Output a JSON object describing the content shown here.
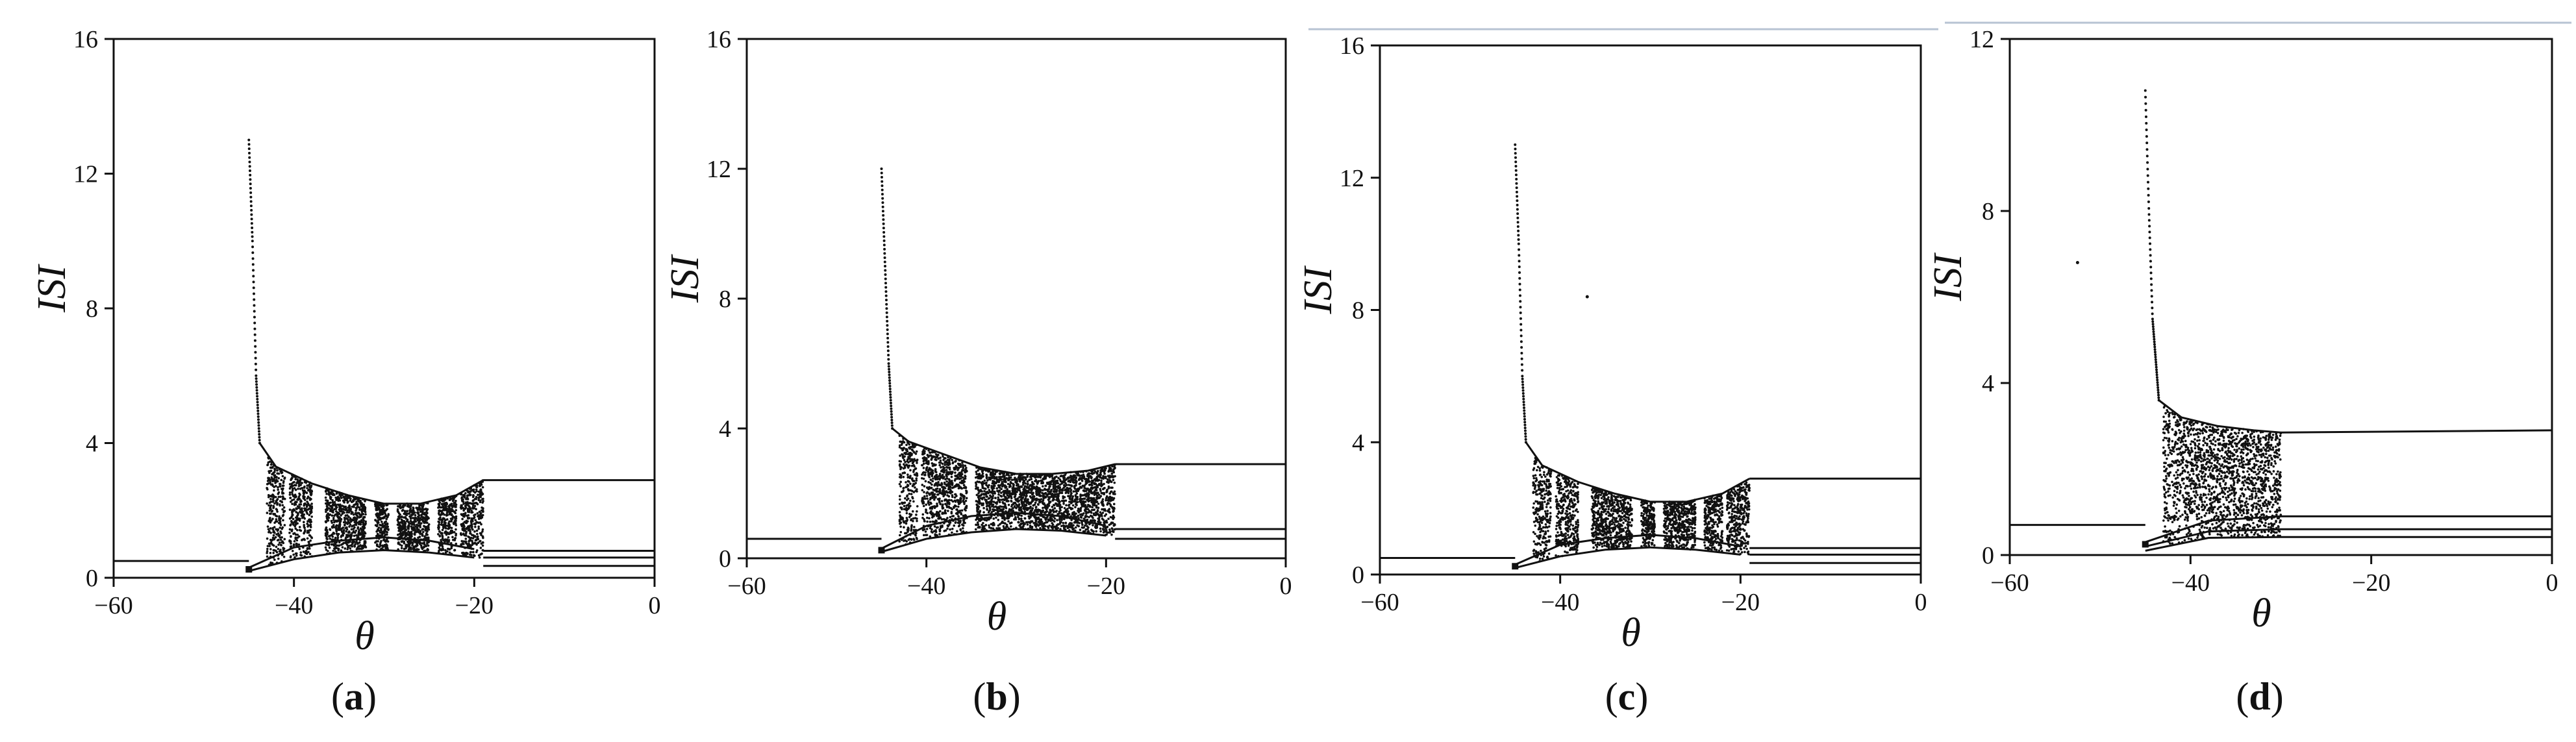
{
  "figure": {
    "captions": [
      {
        "open": "(",
        "letter": "a",
        "close": ")"
      },
      {
        "open": "(",
        "letter": "b",
        "close": ")"
      },
      {
        "open": "(",
        "letter": "c",
        "close": ")"
      },
      {
        "open": "(",
        "letter": "d",
        "close": ")"
      }
    ]
  },
  "chart_data": [
    {
      "type": "scatter",
      "panel": "a",
      "xlabel": "θ",
      "ylabel": "ISI",
      "xlim": [
        -60,
        0
      ],
      "ylim": [
        0,
        16
      ],
      "xticks": [
        -60,
        -40,
        -20,
        0
      ],
      "yticks": [
        0,
        4,
        8,
        12,
        16
      ],
      "tick_labels_x": [
        "−60",
        "−40",
        "−20",
        "0"
      ],
      "tick_labels_y": [
        "0",
        "4",
        "8",
        "12",
        "16"
      ],
      "grid": false,
      "onset_theta": -45,
      "chaos_end_theta": -19,
      "lines": [
        {
          "name": "low-branch-left",
          "points": [
            [
              -60,
              0.5
            ],
            [
              -45,
              0.5
            ]
          ]
        },
        {
          "name": "upper-envelope",
          "points": [
            [
              -45,
              13
            ],
            [
              -44.6,
              10
            ],
            [
              -44.2,
              6
            ],
            [
              -43.8,
              4
            ],
            [
              -42,
              3.3
            ],
            [
              -38,
              2.8
            ],
            [
              -34,
              2.45
            ],
            [
              -30,
              2.2
            ],
            [
              -26,
              2.2
            ],
            [
              -22,
              2.45
            ],
            [
              -19,
              2.9
            ]
          ]
        },
        {
          "name": "high-branch-right",
          "points": [
            [
              -19,
              2.9
            ],
            [
              0,
              2.9
            ]
          ]
        },
        {
          "name": "mid-branch-right",
          "points": [
            [
              -19,
              0.8
            ],
            [
              0,
              0.8
            ]
          ]
        },
        {
          "name": "low-branch-right",
          "points": [
            [
              -19,
              0.6
            ],
            [
              0,
              0.6
            ]
          ]
        },
        {
          "name": "lowest-branch-right",
          "points": [
            [
              -19,
              0.35
            ],
            [
              0,
              0.35
            ]
          ]
        },
        {
          "name": "inner-arc-1",
          "points": [
            [
              -45,
              0.2
            ],
            [
              -40,
              0.55
            ],
            [
              -35,
              0.75
            ],
            [
              -30,
              0.82
            ],
            [
              -25,
              0.75
            ],
            [
              -20,
              0.6
            ]
          ]
        },
        {
          "name": "inner-arc-2",
          "points": [
            [
              -45,
              0.3
            ],
            [
              -40,
              0.9
            ],
            [
              -35,
              1.1
            ],
            [
              -30,
              1.2
            ],
            [
              -25,
              1.1
            ],
            [
              -20,
              0.85
            ]
          ]
        }
      ],
      "chaotic_bands": [
        [
          -43,
          -41
        ],
        [
          -40.5,
          -38
        ],
        [
          -36.5,
          -32
        ],
        [
          -31,
          -29.5
        ],
        [
          -28.5,
          -25
        ],
        [
          -24,
          -22
        ],
        [
          -21.5,
          -19
        ]
      ]
    },
    {
      "type": "scatter",
      "panel": "b",
      "xlabel": "θ",
      "ylabel": "ISI",
      "xlim": [
        -60,
        0
      ],
      "ylim": [
        0,
        16
      ],
      "xticks": [
        -60,
        -40,
        -20,
        0
      ],
      "yticks": [
        0,
        4,
        8,
        12,
        16
      ],
      "tick_labels_x": [
        "−60",
        "−40",
        "−20",
        "0"
      ],
      "tick_labels_y": [
        "0",
        "4",
        "8",
        "12",
        "16"
      ],
      "grid": false,
      "onset_theta": -45,
      "chaos_end_theta": -19,
      "lines": [
        {
          "name": "low-branch-left",
          "points": [
            [
              -60,
              0.6
            ],
            [
              -45,
              0.6
            ]
          ]
        },
        {
          "name": "upper-envelope",
          "points": [
            [
              -45,
              12
            ],
            [
              -44.6,
              9
            ],
            [
              -44.2,
              6
            ],
            [
              -43.8,
              4
            ],
            [
              -42,
              3.6
            ],
            [
              -38,
              3.2
            ],
            [
              -34,
              2.8
            ],
            [
              -30,
              2.6
            ],
            [
              -26,
              2.6
            ],
            [
              -22,
              2.7
            ],
            [
              -19,
              2.9
            ]
          ]
        },
        {
          "name": "high-branch-right",
          "points": [
            [
              -19,
              2.9
            ],
            [
              0,
              2.9
            ]
          ]
        },
        {
          "name": "mid-branch-right",
          "points": [
            [
              -19,
              0.9
            ],
            [
              0,
              0.9
            ]
          ]
        },
        {
          "name": "low-branch-right",
          "points": [
            [
              -19,
              0.6
            ],
            [
              0,
              0.6
            ]
          ]
        },
        {
          "name": "inner-arc-1",
          "points": [
            [
              -45,
              0.2
            ],
            [
              -40,
              0.6
            ],
            [
              -35,
              0.8
            ],
            [
              -30,
              0.9
            ],
            [
              -25,
              0.85
            ],
            [
              -20,
              0.7
            ]
          ]
        },
        {
          "name": "inner-arc-2",
          "points": [
            [
              -45,
              0.3
            ],
            [
              -40,
              1.0
            ],
            [
              -35,
              1.3
            ],
            [
              -30,
              1.4
            ],
            [
              -25,
              1.3
            ],
            [
              -20,
              1.0
            ]
          ]
        }
      ],
      "chaotic_bands": [
        [
          -43,
          -41
        ],
        [
          -40.5,
          -35.5
        ],
        [
          -34.5,
          -19
        ]
      ]
    },
    {
      "type": "scatter",
      "panel": "c",
      "xlabel": "θ",
      "ylabel": "ISI",
      "xlim": [
        -60,
        0
      ],
      "ylim": [
        0,
        16
      ],
      "xticks": [
        -60,
        -40,
        -20,
        0
      ],
      "yticks": [
        0,
        4,
        8,
        12,
        16
      ],
      "tick_labels_x": [
        "−60",
        "−40",
        "−20",
        "0"
      ],
      "tick_labels_y": [
        "0",
        "4",
        "8",
        "12",
        "16"
      ],
      "grid": false,
      "onset_theta": -45,
      "chaos_end_theta": -19,
      "lines": [
        {
          "name": "low-branch-left",
          "points": [
            [
              -60,
              0.5
            ],
            [
              -45,
              0.5
            ]
          ]
        },
        {
          "name": "upper-envelope",
          "points": [
            [
              -45,
              13
            ],
            [
              -44.6,
              10
            ],
            [
              -44.2,
              6
            ],
            [
              -43.8,
              4
            ],
            [
              -42,
              3.3
            ],
            [
              -38,
              2.8
            ],
            [
              -34,
              2.45
            ],
            [
              -30,
              2.2
            ],
            [
              -26,
              2.2
            ],
            [
              -22,
              2.45
            ],
            [
              -19,
              2.9
            ]
          ]
        },
        {
          "name": "high-branch-right",
          "points": [
            [
              -19,
              2.9
            ],
            [
              0,
              2.9
            ]
          ]
        },
        {
          "name": "mid-branch-right",
          "points": [
            [
              -19,
              0.8
            ],
            [
              0,
              0.8
            ]
          ]
        },
        {
          "name": "low-branch-right",
          "points": [
            [
              -19,
              0.6
            ],
            [
              0,
              0.6
            ]
          ]
        },
        {
          "name": "lowest-branch-right",
          "points": [
            [
              -19,
              0.35
            ],
            [
              0,
              0.35
            ]
          ]
        },
        {
          "name": "inner-arc-1",
          "points": [
            [
              -45,
              0.2
            ],
            [
              -40,
              0.55
            ],
            [
              -35,
              0.75
            ],
            [
              -30,
              0.82
            ],
            [
              -25,
              0.75
            ],
            [
              -20,
              0.6
            ]
          ]
        },
        {
          "name": "inner-arc-2",
          "points": [
            [
              -45,
              0.3
            ],
            [
              -40,
              0.9
            ],
            [
              -35,
              1.1
            ],
            [
              -30,
              1.2
            ],
            [
              -25,
              1.1
            ],
            [
              -20,
              0.85
            ]
          ]
        }
      ],
      "chaotic_bands": [
        [
          -43,
          -41
        ],
        [
          -40.5,
          -38
        ],
        [
          -36.5,
          -32
        ],
        [
          -31,
          -29.5
        ],
        [
          -28.5,
          -25
        ],
        [
          -24,
          -22
        ],
        [
          -21.5,
          -19
        ]
      ],
      "isolated_points": [
        [
          -37,
          8.4
        ]
      ]
    },
    {
      "type": "scatter",
      "panel": "d",
      "xlabel": "θ",
      "ylabel": "ISI",
      "xlim": [
        -60,
        0
      ],
      "ylim": [
        0,
        12
      ],
      "xticks": [
        -60,
        -40,
        -20,
        0
      ],
      "yticks": [
        0,
        4,
        8,
        12
      ],
      "tick_labels_x": [
        "−60",
        "−40",
        "−20",
        "0"
      ],
      "tick_labels_y": [
        "0",
        "4",
        "8",
        "12"
      ],
      "grid": false,
      "onset_theta": -45,
      "chaos_end_theta": -30,
      "lines": [
        {
          "name": "low-branch-left",
          "points": [
            [
              -60,
              0.7
            ],
            [
              -45,
              0.7
            ]
          ]
        },
        {
          "name": "upper-envelope",
          "points": [
            [
              -45,
              10.8
            ],
            [
              -44.6,
              8
            ],
            [
              -44.2,
              5.5
            ],
            [
              -43.5,
              3.6
            ],
            [
              -41,
              3.2
            ],
            [
              -37,
              3.0
            ],
            [
              -33,
              2.9
            ],
            [
              -30,
              2.85
            ],
            [
              0,
              2.9
            ]
          ]
        },
        {
          "name": "mid-branch-right",
          "points": [
            [
              -45,
              0.3
            ],
            [
              -38,
              0.8
            ],
            [
              -30,
              0.9
            ],
            [
              0,
              0.9
            ]
          ]
        },
        {
          "name": "low-branch-right",
          "points": [
            [
              -45,
              0.2
            ],
            [
              -38,
              0.55
            ],
            [
              -30,
              0.6
            ],
            [
              0,
              0.6
            ]
          ]
        },
        {
          "name": "lowest-branch-right",
          "points": [
            [
              -45,
              0.1
            ],
            [
              -38,
              0.4
            ],
            [
              -30,
              0.42
            ],
            [
              0,
              0.42
            ]
          ]
        }
      ],
      "chaotic_bands": [
        [
          -43,
          -30
        ]
      ],
      "isolated_points": [
        [
          -52.5,
          6.8
        ]
      ]
    }
  ]
}
